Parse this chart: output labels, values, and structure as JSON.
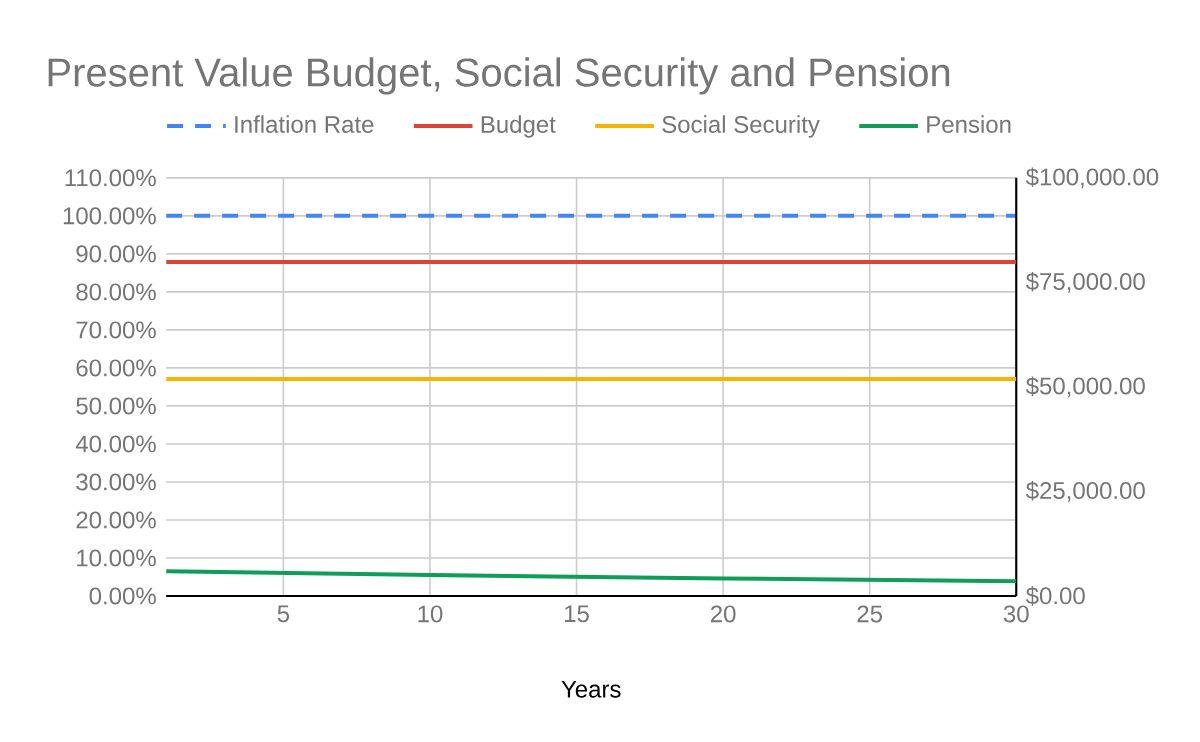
{
  "chart_data": {
    "type": "line",
    "title": "Present Value Budget, Social Security and Pension",
    "xlabel": "Years",
    "x": [
      1,
      10,
      20,
      30
    ],
    "series": [
      {
        "name": "Inflation Rate",
        "color": "#4285f4",
        "values": [
          100,
          100,
          100,
          100
        ],
        "line_style": "dashed"
      },
      {
        "name": "Budget",
        "color": "#db4437",
        "values": [
          79900,
          79900,
          79900,
          79900
        ],
        "axis": "y2"
      },
      {
        "name": "Social Security",
        "color": "#f4b400",
        "values": [
          51900,
          51900,
          51900,
          51900
        ],
        "axis": "y2"
      },
      {
        "name": "Pension",
        "color": "#0f9d58",
        "values": [
          5900,
          5000,
          4200,
          3500
        ],
        "axis": "y2"
      }
    ],
    "xlim": [
      1,
      30
    ],
    "xticks": [
      5,
      10,
      15,
      20,
      25,
      30
    ],
    "ylim": [
      0,
      110
    ],
    "yticks": [
      {
        "value": 0,
        "label": "0.00%"
      },
      {
        "value": 10,
        "label": "10.00%"
      },
      {
        "value": 20,
        "label": "20.00%"
      },
      {
        "value": 30,
        "label": "30.00%"
      },
      {
        "value": 40,
        "label": "40.00%"
      },
      {
        "value": 50,
        "label": "50.00%"
      },
      {
        "value": 60,
        "label": "60.00%"
      },
      {
        "value": 70,
        "label": "70.00%"
      },
      {
        "value": 80,
        "label": "80.00%"
      },
      {
        "value": 90,
        "label": "90.00%"
      },
      {
        "value": 100,
        "label": "100.00%"
      },
      {
        "value": 110,
        "label": "110.00%"
      }
    ],
    "y2lim": [
      0,
      100000
    ],
    "y2ticks": [
      {
        "value": 0,
        "label": "$0.00"
      },
      {
        "value": 25000,
        "label": "$25,000.00"
      },
      {
        "value": 50000,
        "label": "$50,000.00"
      },
      {
        "value": 75000,
        "label": "$75,000.00"
      },
      {
        "value": 100000,
        "label": "$100,000.00"
      }
    ],
    "grid": true,
    "legend": "top",
    "marker": "none"
  }
}
